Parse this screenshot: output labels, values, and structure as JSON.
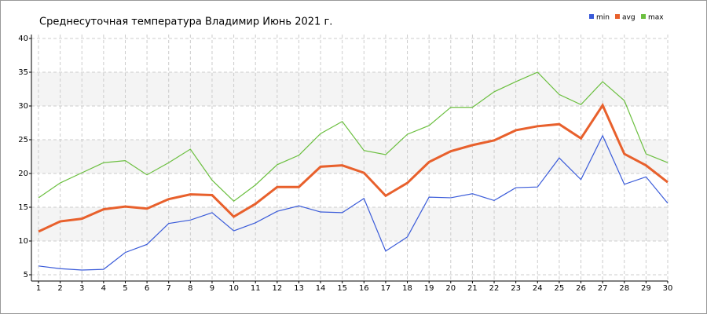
{
  "chart_data": {
    "type": "line",
    "title": "Среднесуточная температура Владимир  Июнь 2021 г.",
    "x": [
      1,
      2,
      3,
      4,
      5,
      6,
      7,
      8,
      9,
      10,
      11,
      12,
      13,
      14,
      15,
      16,
      17,
      18,
      19,
      20,
      21,
      22,
      23,
      24,
      25,
      26,
      27,
      28,
      29,
      30
    ],
    "xlim": [
      1,
      30
    ],
    "xticks": [
      1,
      2,
      3,
      4,
      5,
      6,
      7,
      8,
      9,
      10,
      11,
      12,
      13,
      14,
      15,
      16,
      17,
      18,
      19,
      20,
      21,
      22,
      23,
      24,
      25,
      26,
      27,
      28,
      29,
      30
    ],
    "ylim": [
      5,
      40
    ],
    "yticks": [
      5,
      10,
      15,
      20,
      25,
      30,
      35,
      40
    ],
    "grid": true,
    "legend": "top-right",
    "series": [
      {
        "name": "min",
        "color": "#3a5bd9",
        "values": [
          6.3,
          5.9,
          5.7,
          5.8,
          8.3,
          9.5,
          12.6,
          13.1,
          14.2,
          11.5,
          12.7,
          14.4,
          15.2,
          14.3,
          14.2,
          16.3,
          8.5,
          10.6,
          16.5,
          16.4,
          17.0,
          16.0,
          17.9,
          18.0,
          22.3,
          19.1,
          25.6,
          18.4,
          19.5,
          15.6
        ]
      },
      {
        "name": "avg",
        "color": "#e8602c",
        "values": [
          11.4,
          12.9,
          13.3,
          14.7,
          15.1,
          14.8,
          16.2,
          16.9,
          16.8,
          13.6,
          15.5,
          18.0,
          18.0,
          21.0,
          21.2,
          20.1,
          16.7,
          18.6,
          21.7,
          23.3,
          24.2,
          24.9,
          26.4,
          27.0,
          27.3,
          25.2,
          30.1,
          22.9,
          21.2,
          18.7
        ]
      },
      {
        "name": "max",
        "color": "#6bbf3f",
        "values": [
          16.4,
          18.6,
          20.1,
          21.6,
          21.9,
          19.8,
          21.6,
          23.6,
          19.0,
          15.9,
          18.3,
          21.3,
          22.7,
          25.9,
          27.7,
          23.4,
          22.8,
          25.8,
          27.1,
          29.8,
          29.8,
          32.1,
          33.6,
          35.0,
          31.7,
          30.2,
          33.6,
          30.8,
          22.9,
          21.6
        ]
      }
    ]
  }
}
